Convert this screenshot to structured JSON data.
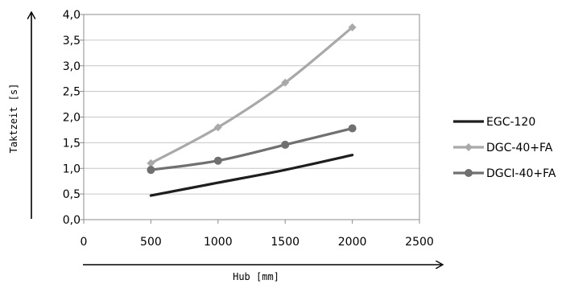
{
  "chart_data": {
    "type": "line",
    "title": "",
    "xlabel": "Hub [mm]",
    "ylabel": "Taktzeit [s]",
    "xlim": [
      0,
      2500
    ],
    "ylim": [
      0,
      4
    ],
    "x_ticks": [
      "0",
      "500",
      "1000",
      "1500",
      "2000",
      "2500"
    ],
    "y_ticks": [
      "0,0",
      "0,5",
      "1,0",
      "1,5",
      "2,0",
      "2,5",
      "3,0",
      "3,5",
      "4,0"
    ],
    "grid": "horizontal",
    "legend_position": "right",
    "series": [
      {
        "name": "EGC-120",
        "color": "#1e1e1e",
        "marker": "none",
        "x": [
          500,
          1000,
          1500,
          2000
        ],
        "y": [
          0.47,
          0.72,
          0.97,
          1.26
        ]
      },
      {
        "name": "DGC-40+FA",
        "color": "#a9a9a9",
        "marker": "diamond",
        "x": [
          500,
          1000,
          1500,
          2000
        ],
        "y": [
          1.1,
          1.8,
          2.67,
          3.75
        ]
      },
      {
        "name": "DGCI-40+FA",
        "color": "#707070",
        "marker": "circle",
        "x": [
          500,
          1000,
          1500,
          2000
        ],
        "y": [
          0.97,
          1.15,
          1.46,
          1.78
        ]
      }
    ]
  }
}
